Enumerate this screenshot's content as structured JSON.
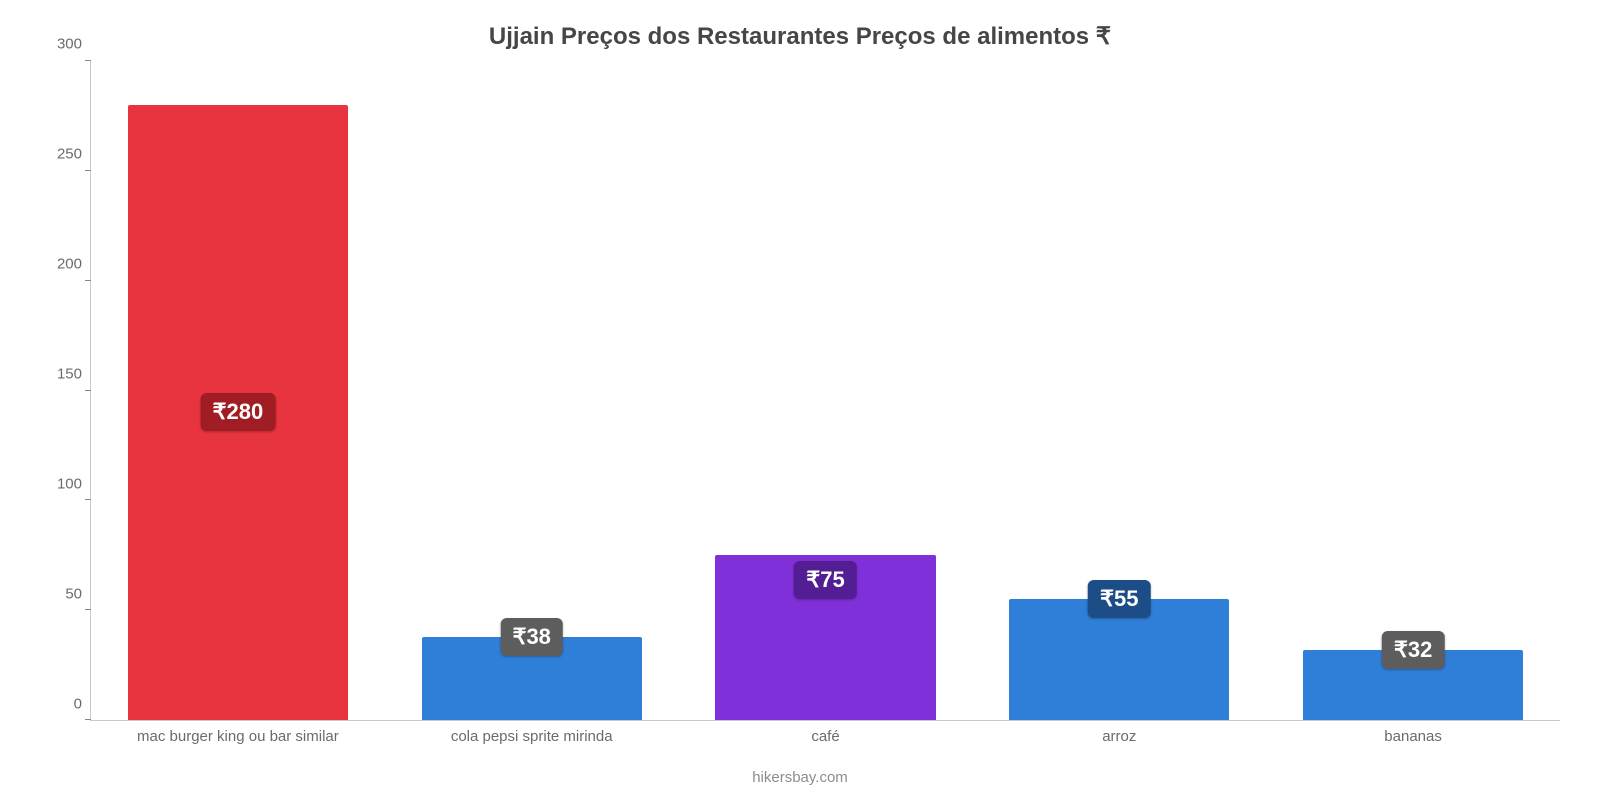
{
  "chart": {
    "type": "bar",
    "title": "Ujjain Preços dos Restaurantes Preços de alimentos ₹",
    "title_fontsize": 24,
    "title_color": "#464646",
    "background_color": "#ffffff",
    "axis_color": "#c9c9c9",
    "y": {
      "min": 0,
      "max": 300,
      "tick_step": 50,
      "ticks": [
        0,
        50,
        100,
        150,
        200,
        250,
        300
      ],
      "label_color": "#6b6b6b",
      "label_fontsize": 15
    },
    "x": {
      "label_color": "#6b6b6b",
      "label_fontsize": 15
    },
    "bar_width_pct": 75,
    "value_badge": {
      "fontsize": 22,
      "border_radius": 6,
      "padding": "6px 12px",
      "text_color": "#ffffff"
    },
    "badge_position_overrides": {
      "0": "middle",
      "1": "top",
      "2": "top-inside",
      "3": "top",
      "4": "top"
    },
    "categories": [
      "mac burger king ou bar similar",
      "cola pepsi sprite mirinda",
      "café",
      "arroz",
      "bananas"
    ],
    "values": [
      280,
      38,
      75,
      55,
      32
    ],
    "display_values": [
      "₹280",
      "₹38",
      "₹75",
      "₹55",
      "₹32"
    ],
    "bar_colors": [
      "#e8343e",
      "#2f7ed8",
      "#8030d8",
      "#2f7ed8",
      "#2f7ed8"
    ],
    "badge_colors": [
      "#a01d23",
      "#5d5d5d",
      "#531d94",
      "#1c4d86",
      "#5d5d5d"
    ],
    "credit": "hikersbay.com",
    "credit_fontsize": 15,
    "credit_color": "#8d8d8d"
  }
}
